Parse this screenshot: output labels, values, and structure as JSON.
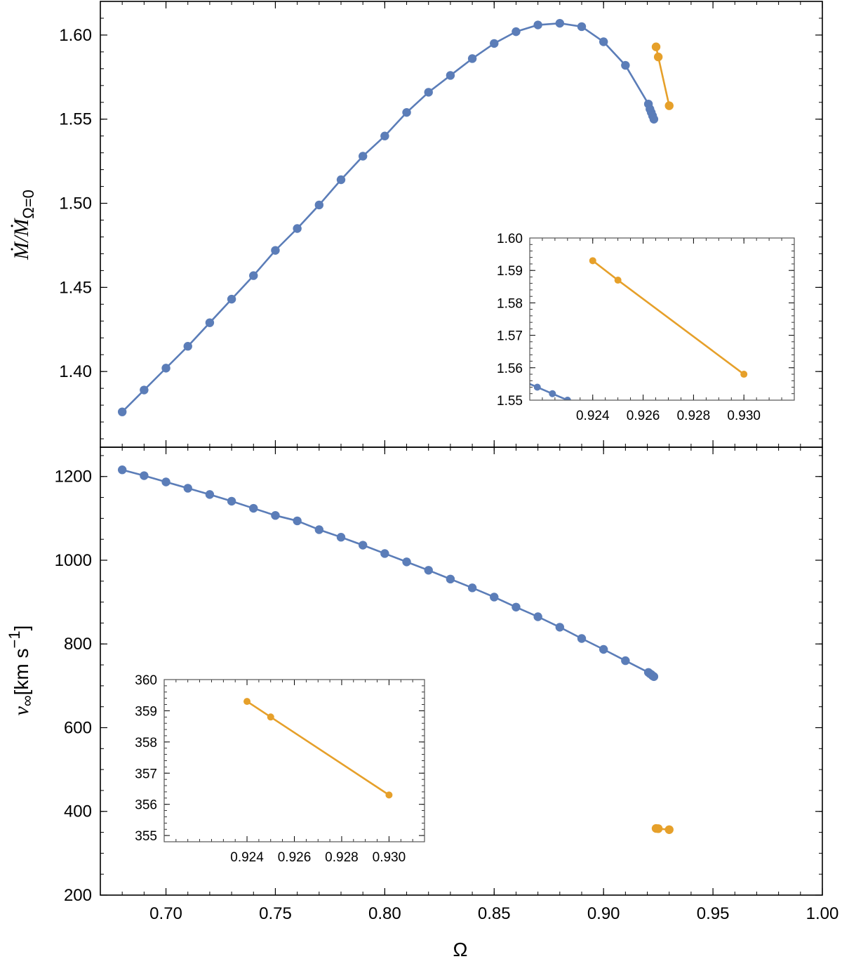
{
  "colors": {
    "blue": "#5b7db8",
    "orange": "#e6a02a",
    "frame": "#000000"
  },
  "chart_data": [
    {
      "type": "line",
      "panel": "top",
      "xlabel": "Ω",
      "ylabel_main": "Ṁ/Ṁ",
      "ylabel_sub": "Ω=0",
      "xlim": [
        0.67,
        1.0
      ],
      "ylim": [
        1.355,
        1.62
      ],
      "xticks": [
        "0.70",
        "0.75",
        "0.80",
        "0.85",
        "0.90",
        "0.95",
        "1.00"
      ],
      "yticks": [
        "1.40",
        "1.45",
        "1.50",
        "1.55",
        "1.60"
      ],
      "series": [
        {
          "name": "blue",
          "x": [
            0.68,
            0.69,
            0.7,
            0.71,
            0.72,
            0.73,
            0.74,
            0.75,
            0.76,
            0.77,
            0.78,
            0.79,
            0.8,
            0.81,
            0.82,
            0.83,
            0.84,
            0.85,
            0.86,
            0.87,
            0.88,
            0.89,
            0.9,
            0.91,
            0.9205,
            0.9212,
            0.9218,
            0.9224,
            0.923
          ],
          "y": [
            1.376,
            1.389,
            1.402,
            1.415,
            1.429,
            1.443,
            1.457,
            1.472,
            1.485,
            1.499,
            1.514,
            1.528,
            1.54,
            1.554,
            1.566,
            1.576,
            1.586,
            1.595,
            1.602,
            1.606,
            1.607,
            1.605,
            1.596,
            1.582,
            1.559,
            1.556,
            1.554,
            1.552,
            1.55
          ]
        },
        {
          "name": "orange",
          "x": [
            0.924,
            0.925,
            0.93
          ],
          "y": [
            1.593,
            1.587,
            1.558
          ]
        }
      ],
      "inset": {
        "xlim": [
          0.9215,
          0.932
        ],
        "ylim": [
          1.55,
          1.6
        ],
        "xticks": [
          "0.924",
          "0.926",
          "0.928",
          "0.930"
        ],
        "yticks": [
          "1.55",
          "1.56",
          "1.57",
          "1.58",
          "1.59",
          "1.60"
        ]
      }
    },
    {
      "type": "line",
      "panel": "bottom",
      "xlabel": "Ω",
      "ylabel_main": "v",
      "ylabel_sub": "∞",
      "ylabel_unit": "[km s",
      "ylabel_exp": "−1",
      "ylabel_close": "]",
      "xlim": [
        0.67,
        1.0
      ],
      "ylim": [
        200,
        1270
      ],
      "xticks": [
        "0.70",
        "0.75",
        "0.80",
        "0.85",
        "0.90",
        "0.95",
        "1.00"
      ],
      "yticks": [
        "200",
        "400",
        "600",
        "800",
        "1000",
        "1200"
      ],
      "series": [
        {
          "name": "blue",
          "x": [
            0.68,
            0.69,
            0.7,
            0.71,
            0.72,
            0.73,
            0.74,
            0.75,
            0.76,
            0.77,
            0.78,
            0.79,
            0.8,
            0.81,
            0.82,
            0.83,
            0.84,
            0.85,
            0.86,
            0.87,
            0.88,
            0.89,
            0.9,
            0.91,
            0.9205,
            0.9212,
            0.9218,
            0.9224,
            0.923
          ],
          "y": [
            1216,
            1202,
            1187,
            1172,
            1157,
            1141,
            1124,
            1107,
            1094,
            1073,
            1055,
            1036,
            1016,
            996,
            976,
            955,
            934,
            912,
            888,
            865,
            840,
            813,
            787,
            760,
            732,
            729,
            727,
            724,
            722
          ]
        },
        {
          "name": "orange",
          "x": [
            0.924,
            0.925,
            0.93
          ],
          "y": [
            359.3,
            358.8,
            356.3
          ]
        }
      ],
      "inset": {
        "xlim": [
          0.9205,
          0.9315
        ],
        "ylim": [
          354.8,
          360
        ],
        "xticks": [
          "0.924",
          "0.926",
          "0.928",
          "0.930"
        ],
        "yticks": [
          "355",
          "356",
          "357",
          "358",
          "359",
          "360"
        ]
      }
    }
  ]
}
